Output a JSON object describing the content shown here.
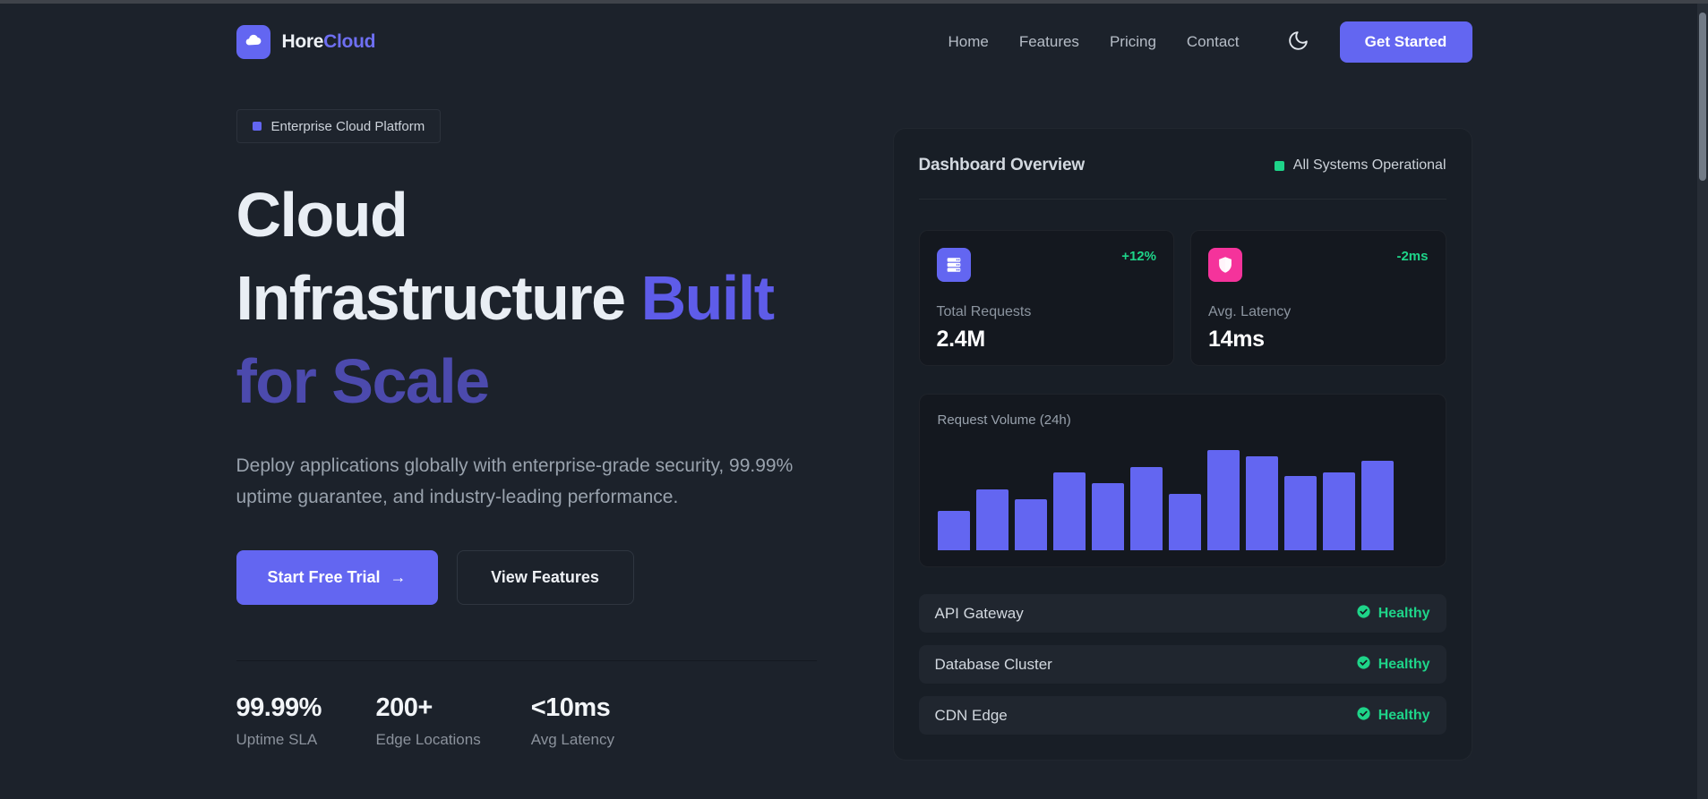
{
  "navbar": {
    "logo": {
      "primary": "Hore",
      "accent": "Cloud"
    },
    "links": [
      "Home",
      "Features",
      "Pricing",
      "Contact"
    ],
    "cta_label": "Get Started"
  },
  "hero": {
    "badge_label": "Enterprise Cloud Platform",
    "title": {
      "line1": "Cloud",
      "line2_normal": "Infrastructure",
      "line2_accent": "Built",
      "line3_accent": "for Scale"
    },
    "description": "Deploy applications globally with enterprise-grade security, 99.99% uptime guarantee, and industry-leading performance.",
    "primary_cta_label": "Start Free Trial",
    "primary_cta_arrow": "→",
    "secondary_cta_label": "View Features",
    "stats": [
      {
        "value": "99.99%",
        "label": "Uptime SLA"
      },
      {
        "value": "200+",
        "label": "Edge Locations"
      },
      {
        "value": "<10ms",
        "label": "Avg Latency"
      }
    ]
  },
  "dashboard": {
    "title": "Dashboard Overview",
    "status_label": "All Systems Operational",
    "metrics": [
      {
        "icon": "server-icon",
        "icon_color": "#6366f1",
        "delta": "+12%",
        "label": "Total Requests",
        "value": "2.4M"
      },
      {
        "icon": "shield-icon",
        "icon_color": "#f5339b",
        "delta": "-2ms",
        "label": "Avg. Latency",
        "value": "14ms"
      }
    ],
    "services": [
      {
        "name": "API Gateway",
        "status": "Healthy"
      },
      {
        "name": "Database Cluster",
        "status": "Healthy"
      },
      {
        "name": "CDN Edge",
        "status": "Healthy"
      }
    ]
  },
  "chart_data": {
    "type": "bar",
    "title": "Request Volume (24h)",
    "values": [
      39,
      61,
      51,
      78,
      67,
      83,
      56,
      100,
      94,
      74,
      78,
      89
    ],
    "ylim": [
      0,
      100
    ],
    "bar_color": "#6366f1",
    "grid": false,
    "note": "12 unlabeled bars, values are relative percentages of tallest bar"
  },
  "colors": {
    "accent_purple": "#6366f1",
    "status_green": "#1ed489",
    "icon_pink": "#f5339b",
    "background": "#1c222b"
  }
}
